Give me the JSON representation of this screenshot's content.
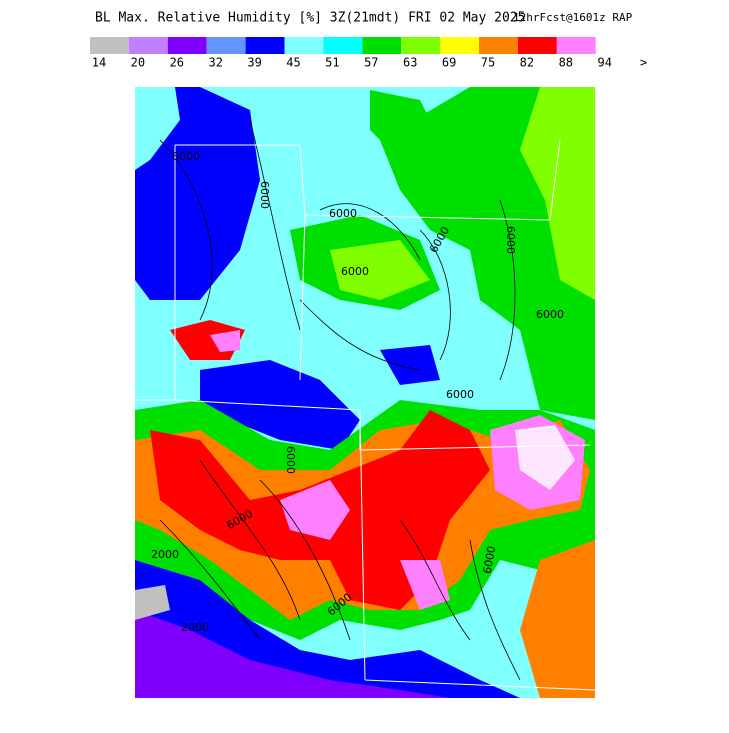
{
  "header": {
    "title": "BL Max. Relative Humidity [%] 3Z(21mdt) FRI 02 May 2025",
    "subtitle": "12hrFcst@1601z RAP"
  },
  "colorbar": {
    "colors": [
      "#c0c0c0",
      "#c080ff",
      "#8000ff",
      "#6495ff",
      "#0000ff",
      "#80ffff",
      "#00ffff",
      "#00e000",
      "#80ff00",
      "#ffff00",
      "#ff8000",
      "#ff0000",
      "#ff80ff"
    ],
    "labels": [
      "14",
      "20",
      "26",
      "32",
      "39",
      "45",
      "51",
      "57",
      "63",
      "69",
      "75",
      "82",
      "88",
      "94",
      ">"
    ]
  },
  "map": {
    "contour_labels": [
      "6000",
      "6000",
      "6000",
      "6000",
      "6000",
      "6000",
      "6000",
      "6000",
      "6000",
      "6000",
      "2000",
      "2000",
      "6000",
      "6000"
    ]
  }
}
